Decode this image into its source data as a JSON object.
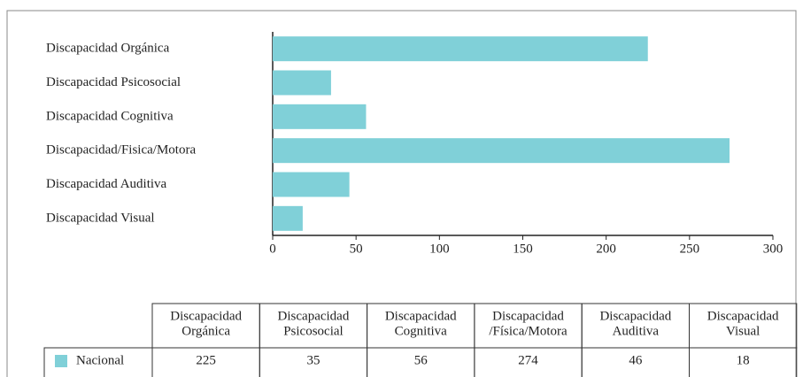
{
  "chart_data": {
    "type": "bar",
    "orientation": "horizontal",
    "categories": [
      "Discapacidad Orgánica",
      "Discapacidad Psicosocial",
      "Discapacidad Cognitiva",
      "Discapacidad/Fisica/Motora",
      "Discapacidad Auditiva",
      "Discapacidad Visual"
    ],
    "series": [
      {
        "name": "Nacional",
        "color": "#80d0d8",
        "values": [
          225,
          35,
          56,
          274,
          46,
          18
        ]
      }
    ],
    "xlim": [
      0,
      300
    ],
    "xticks": [
      0,
      50,
      100,
      150,
      200,
      250,
      300
    ],
    "table_columns": [
      [
        "Discapacidad",
        "Orgánica"
      ],
      [
        "Discapacidad",
        "Psicosocial"
      ],
      [
        "Discapacidad",
        "Cognitiva"
      ],
      [
        "Discapacidad",
        "/Física/Motora"
      ],
      [
        "Discapacidad",
        "Auditiva"
      ],
      [
        "Discapacidad",
        "Visual"
      ]
    ]
  }
}
